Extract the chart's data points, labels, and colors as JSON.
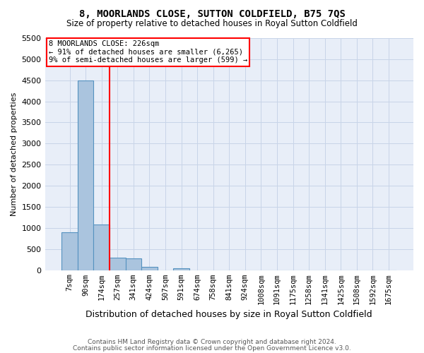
{
  "title": "8, MOORLANDS CLOSE, SUTTON COLDFIELD, B75 7QS",
  "subtitle": "Size of property relative to detached houses in Royal Sutton Coldfield",
  "xlabel": "Distribution of detached houses by size in Royal Sutton Coldfield",
  "ylabel": "Number of detached properties",
  "footnote1": "Contains HM Land Registry data © Crown copyright and database right 2024.",
  "footnote2": "Contains public sector information licensed under the Open Government Licence v3.0.",
  "categories": [
    "7sqm",
    "90sqm",
    "174sqm",
    "257sqm",
    "341sqm",
    "424sqm",
    "507sqm",
    "591sqm",
    "674sqm",
    "758sqm",
    "841sqm",
    "924sqm",
    "1008sqm",
    "1091sqm",
    "1175sqm",
    "1258sqm",
    "1341sqm",
    "1425sqm",
    "1508sqm",
    "1592sqm",
    "1675sqm"
  ],
  "bar_heights": [
    900,
    4500,
    1075,
    300,
    285,
    75,
    0,
    50,
    0,
    0,
    0,
    0,
    0,
    0,
    0,
    0,
    0,
    0,
    0,
    0,
    0
  ],
  "bar_color": "#aac4de",
  "bar_edgecolor": "#5592c0",
  "ylim": [
    0,
    5500
  ],
  "yticks": [
    0,
    500,
    1000,
    1500,
    2000,
    2500,
    3000,
    3500,
    4000,
    4500,
    5000,
    5500
  ],
  "red_line_x": 2.5,
  "annotation_text": "8 MOORLANDS CLOSE: 226sqm\n← 91% of detached houses are smaller (6,265)\n9% of semi-detached houses are larger (599) →",
  "grid_color": "#c8d4e8",
  "background_color": "#e8eef8",
  "title_fontsize": 10,
  "subtitle_fontsize": 8.5,
  "ylabel_fontsize": 8,
  "xlabel_fontsize": 9,
  "tick_fontsize": 7.5,
  "ytick_fontsize": 8,
  "annot_fontsize": 7.5,
  "footnote_fontsize": 6.5
}
